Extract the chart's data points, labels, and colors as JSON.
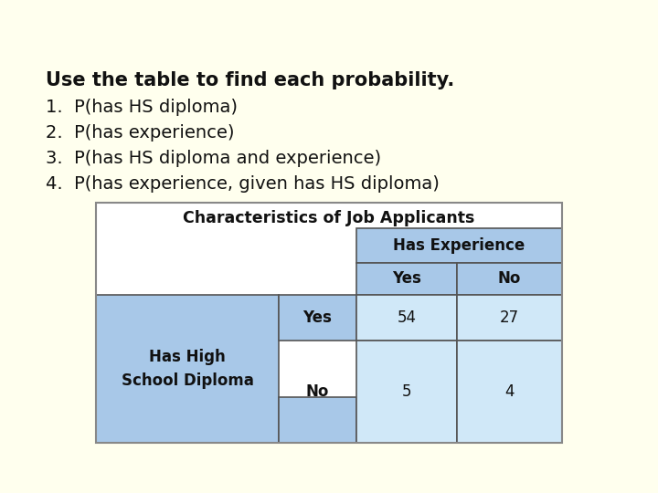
{
  "background_color": "#ffffee",
  "title_text": "Use the table to find each probability.",
  "items": [
    "1.  P(has HS diploma)",
    "2.  P(has experience)",
    "3.  P(has HS diploma and experience)",
    "4.  P(has experience, given has HS diploma)"
  ],
  "table_title": "Characteristics of Job Applicants",
  "table_bg": "#ffffff",
  "header_bg": "#a8c8e8",
  "data_bg": "#d0e8f8",
  "col_header_span": "Has Experience",
  "col_sub_headers": [
    "Yes",
    "No"
  ],
  "row_header_label": "Has High\nSchool Diploma",
  "row_sub_headers": [
    "Yes",
    "No"
  ],
  "data": [
    [
      54,
      27
    ],
    [
      5,
      4
    ]
  ],
  "text_color": "#111111",
  "title_font_size": 15,
  "item_font_size": 14,
  "table_title_font_size": 12.5,
  "cell_font_size": 12
}
